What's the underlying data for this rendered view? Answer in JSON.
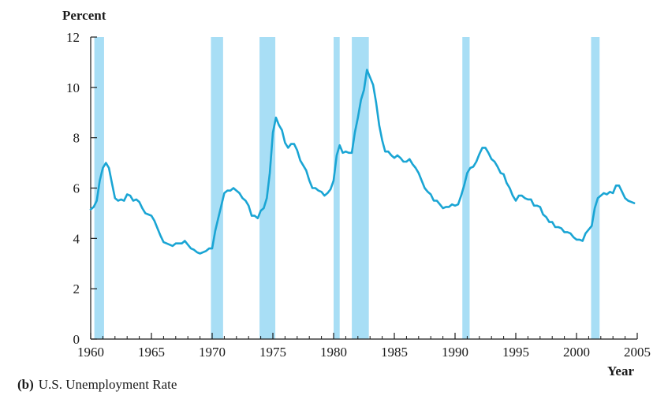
{
  "chart_data": {
    "type": "line",
    "ylabel": "Percent",
    "xlabel": "Year",
    "xlim": [
      1960,
      2005
    ],
    "ylim": [
      0,
      12
    ],
    "x_ticks": [
      1960,
      1965,
      1970,
      1975,
      1980,
      1985,
      1990,
      1995,
      2000,
      2005
    ],
    "y_ticks": [
      0,
      2,
      4,
      6,
      8,
      10,
      12
    ],
    "grid": false,
    "line_color": "#1aa5d4",
    "band_color": "#a8def5",
    "recessions": [
      [
        1960.3,
        1961.1
      ],
      [
        1969.9,
        1970.9
      ],
      [
        1973.9,
        1975.2
      ],
      [
        1980.0,
        1980.5
      ],
      [
        1981.5,
        1982.9
      ],
      [
        1990.6,
        1991.2
      ],
      [
        2001.2,
        2001.9
      ]
    ],
    "series": [
      {
        "x": [
          1960.0,
          1960.25,
          1960.5,
          1960.75,
          1961.0,
          1961.25,
          1961.5,
          1961.75,
          1962.0,
          1962.25,
          1962.5,
          1962.75,
          1963.0,
          1963.25,
          1963.5,
          1963.75,
          1964.0,
          1964.25,
          1964.5,
          1964.75,
          1965.0,
          1965.25,
          1965.5,
          1965.75,
          1966.0,
          1966.25,
          1966.5,
          1966.75,
          1967.0,
          1967.25,
          1967.5,
          1967.75,
          1968.0,
          1968.25,
          1968.5,
          1968.75,
          1969.0,
          1969.25,
          1969.5,
          1969.75,
          1970.0,
          1970.25,
          1970.5,
          1970.75,
          1971.0,
          1971.25,
          1971.5,
          1971.75,
          1972.0,
          1972.25,
          1972.5,
          1972.75,
          1973.0,
          1973.25,
          1973.5,
          1973.75,
          1974.0,
          1974.25,
          1974.5,
          1974.75,
          1975.0,
          1975.25,
          1975.5,
          1975.75,
          1976.0,
          1976.25,
          1976.5,
          1976.75,
          1977.0,
          1977.25,
          1977.5,
          1977.75,
          1978.0,
          1978.25,
          1978.5,
          1978.75,
          1979.0,
          1979.25,
          1979.5,
          1979.75,
          1980.0,
          1980.25,
          1980.5,
          1980.75,
          1981.0,
          1981.25,
          1981.5,
          1981.75,
          1982.0,
          1982.25,
          1982.5,
          1982.75,
          1983.0,
          1983.25,
          1983.5,
          1983.75,
          1984.0,
          1984.25,
          1984.5,
          1984.75,
          1985.0,
          1985.25,
          1985.5,
          1985.75,
          1986.0,
          1986.25,
          1986.5,
          1986.75,
          1987.0,
          1987.25,
          1987.5,
          1987.75,
          1988.0,
          1988.25,
          1988.5,
          1988.75,
          1989.0,
          1989.25,
          1989.5,
          1989.75,
          1990.0,
          1990.25,
          1990.5,
          1990.75,
          1991.0,
          1991.25,
          1991.5,
          1991.75,
          1992.0,
          1992.25,
          1992.5,
          1992.75,
          1993.0,
          1993.25,
          1993.5,
          1993.75,
          1994.0,
          1994.25,
          1994.5,
          1994.75,
          1995.0,
          1995.25,
          1995.5,
          1995.75,
          1996.0,
          1996.25,
          1996.5,
          1996.75,
          1997.0,
          1997.25,
          1997.5,
          1997.75,
          1998.0,
          1998.25,
          1998.5,
          1998.75,
          1999.0,
          1999.25,
          1999.5,
          1999.75,
          2000.0,
          2000.25,
          2000.5,
          2000.75,
          2001.0,
          2001.25,
          2001.5,
          2001.75,
          2002.0,
          2002.25,
          2002.5,
          2002.75,
          2003.0,
          2003.25,
          2003.5,
          2003.75,
          2004.0,
          2004.25,
          2004.5,
          2004.75
        ],
        "y": [
          5.15,
          5.25,
          5.5,
          6.3,
          6.8,
          7.0,
          6.8,
          6.2,
          5.6,
          5.5,
          5.55,
          5.5,
          5.75,
          5.7,
          5.5,
          5.55,
          5.45,
          5.2,
          5.0,
          4.95,
          4.9,
          4.7,
          4.4,
          4.1,
          3.85,
          3.8,
          3.75,
          3.7,
          3.8,
          3.8,
          3.8,
          3.9,
          3.75,
          3.6,
          3.55,
          3.45,
          3.4,
          3.45,
          3.5,
          3.6,
          3.6,
          4.3,
          4.8,
          5.3,
          5.8,
          5.9,
          5.9,
          6.0,
          5.9,
          5.8,
          5.6,
          5.5,
          5.3,
          4.9,
          4.9,
          4.8,
          5.1,
          5.2,
          5.6,
          6.6,
          8.2,
          8.8,
          8.5,
          8.3,
          7.8,
          7.6,
          7.75,
          7.75,
          7.5,
          7.1,
          6.9,
          6.7,
          6.3,
          6.0,
          6.0,
          5.9,
          5.85,
          5.7,
          5.8,
          5.95,
          6.3,
          7.3,
          7.7,
          7.4,
          7.45,
          7.4,
          7.4,
          8.2,
          8.8,
          9.5,
          9.9,
          10.7,
          10.4,
          10.1,
          9.4,
          8.5,
          7.9,
          7.45,
          7.45,
          7.3,
          7.2,
          7.3,
          7.2,
          7.05,
          7.05,
          7.15,
          6.95,
          6.8,
          6.6,
          6.3,
          6.0,
          5.85,
          5.75,
          5.5,
          5.5,
          5.35,
          5.2,
          5.25,
          5.25,
          5.35,
          5.3,
          5.35,
          5.7,
          6.1,
          6.6,
          6.8,
          6.85,
          7.05,
          7.35,
          7.6,
          7.6,
          7.4,
          7.15,
          7.05,
          6.85,
          6.6,
          6.55,
          6.2,
          6.0,
          5.7,
          5.5,
          5.7,
          5.7,
          5.6,
          5.55,
          5.55,
          5.3,
          5.3,
          5.25,
          4.95,
          4.85,
          4.65,
          4.65,
          4.45,
          4.45,
          4.4,
          4.25,
          4.25,
          4.2,
          4.05,
          3.95,
          3.95,
          3.9,
          4.2,
          4.35,
          4.5,
          5.2,
          5.6,
          5.7,
          5.8,
          5.75,
          5.85,
          5.8,
          6.1,
          6.1,
          5.85,
          5.6,
          5.5,
          5.45,
          5.4
        ]
      }
    ]
  },
  "caption": {
    "panel": "(b)",
    "text": "U.S. Unemployment Rate"
  }
}
